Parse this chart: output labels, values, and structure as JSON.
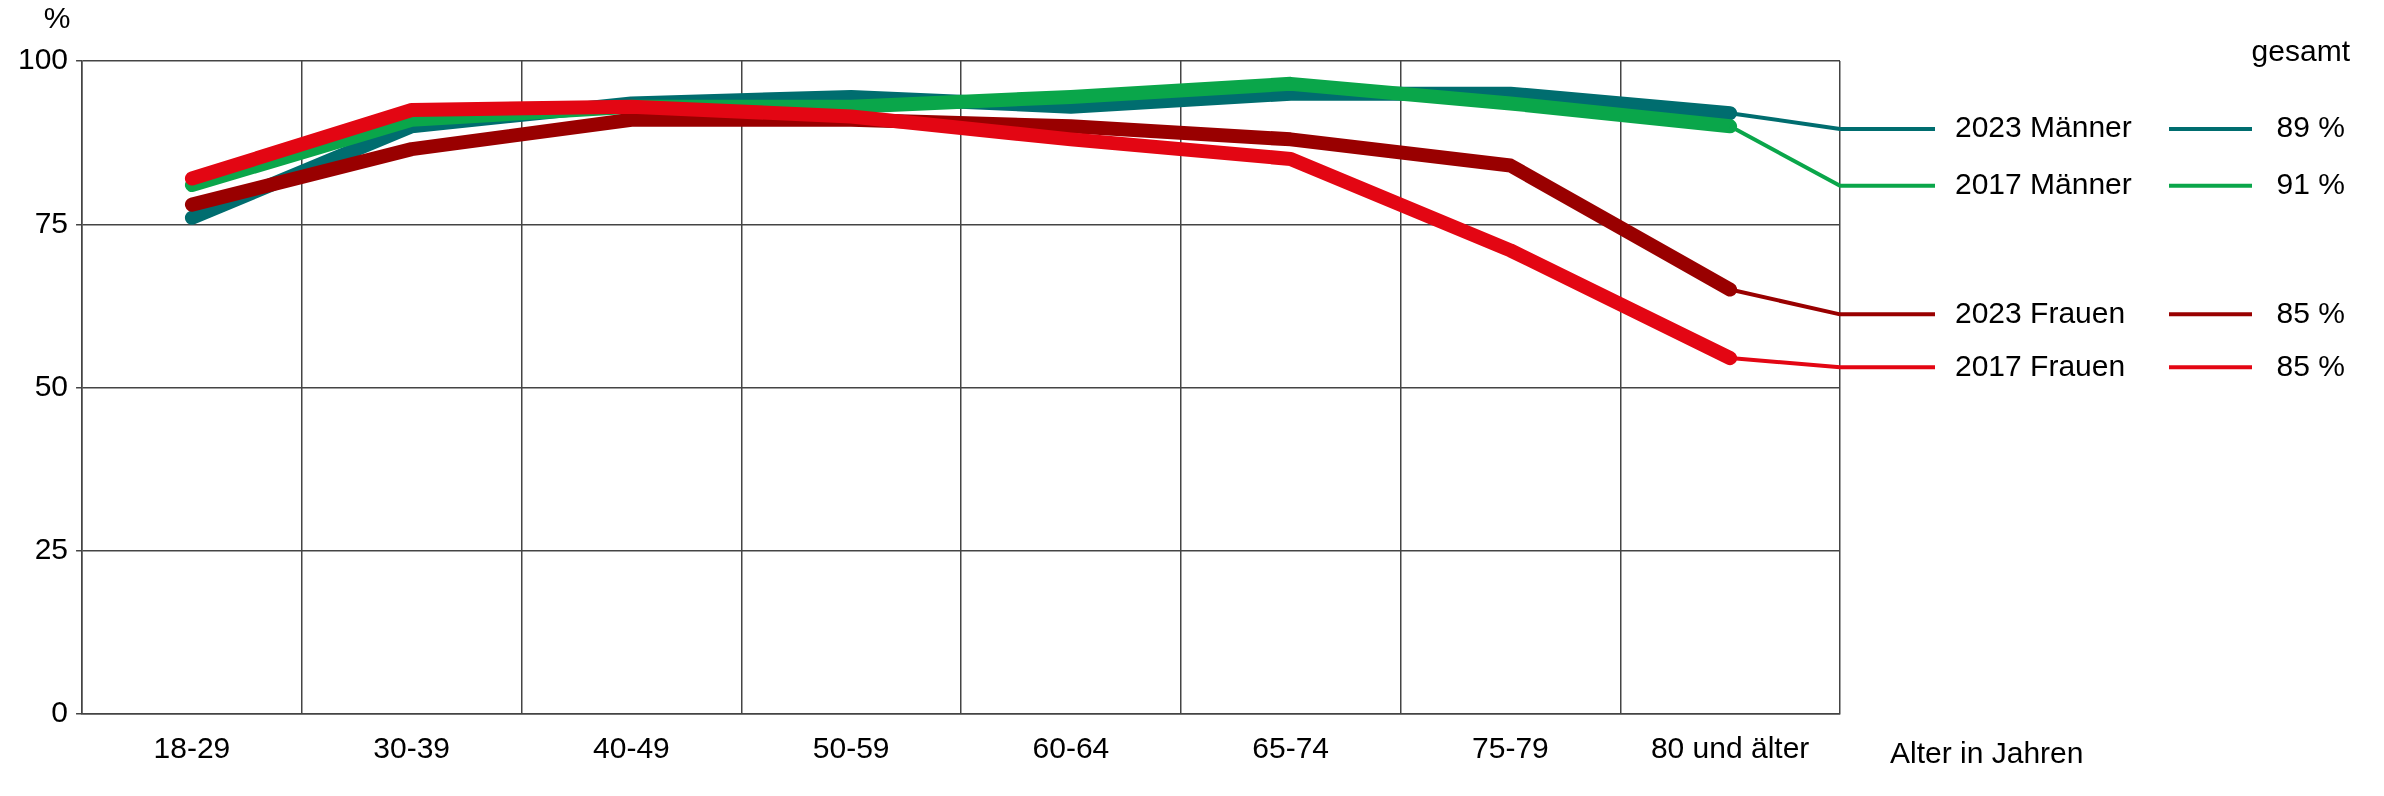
{
  "chart_data": {
    "type": "line",
    "ylabel": "%",
    "xlabel": "Alter in Jahren",
    "legend_title": "gesamt",
    "categories": [
      "18-29",
      "30-39",
      "40-49",
      "50-59",
      "60-64",
      "65-74",
      "75-79",
      "80 und älter"
    ],
    "ylim": [
      0,
      100
    ],
    "yticks": [
      0,
      25,
      50,
      75,
      100
    ],
    "grid": true,
    "legend": "right",
    "marker": "none",
    "line_style": "solid",
    "series": [
      {
        "name": "2023 Männer",
        "color": "#006d6f",
        "values": [
          76,
          90,
          93.5,
          94.5,
          93,
          95,
          95,
          92
        ]
      },
      {
        "name": "2017 Männer",
        "color": "#0aa64a",
        "values": [
          81,
          91,
          93,
          93,
          94.5,
          96.5,
          93.5,
          90
        ]
      },
      {
        "name": "2023 Frauen",
        "color": "#990000",
        "values": [
          78,
          86.5,
          91,
          91,
          90,
          88,
          84,
          65
        ]
      },
      {
        "name": "2017 Frauen",
        "color": "#e30613",
        "values": [
          82,
          92.5,
          93,
          91.5,
          88,
          85,
          71,
          54.5
        ]
      }
    ],
    "annotations": [
      "89 %",
      "91 %",
      "85 %",
      "85 %"
    ]
  }
}
